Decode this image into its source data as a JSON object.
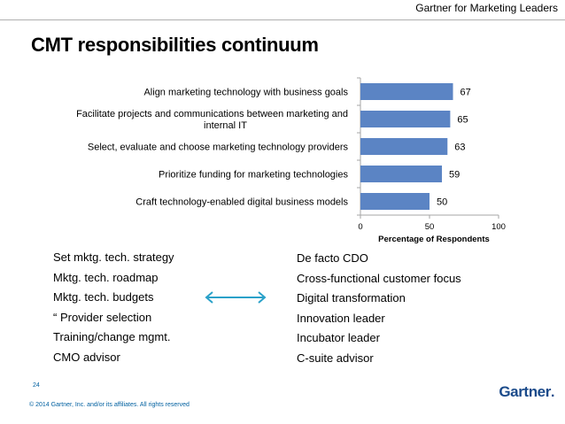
{
  "header": {
    "brand": "Gartner for Marketing Leaders"
  },
  "page": {
    "title": "CMT responsibilities continuum",
    "number": "24"
  },
  "chart_data": {
    "type": "bar",
    "orientation": "horizontal",
    "categories": [
      [
        "Align marketing technology with business goals"
      ],
      [
        "Facilitate projects and communications between marketing and",
        "internal IT"
      ],
      [
        "Select, evaluate and choose marketing technology providers"
      ],
      [
        "Prioritize funding for marketing technologies"
      ],
      [
        "Craft technology-enabled digital business models"
      ]
    ],
    "values": [
      67,
      65,
      63,
      59,
      50
    ],
    "xlabel": "Percentage of Respondents",
    "xlim": [
      0,
      100
    ],
    "xticks": [
      0,
      50,
      100
    ],
    "bar_color": "#5b84c4",
    "show_data_labels": true
  },
  "left_list": [
    "Set mktg. tech. strategy",
    "Mktg. tech. roadmap",
    "Mktg. tech. budgets",
    "“ Provider selection",
    "Training/change mgmt.",
    "CMO advisor"
  ],
  "right_list": [
    "De facto CDO",
    "Cross-functional customer focus",
    "Digital transformation",
    "Innovation leader",
    "Incubator leader",
    "C-suite advisor"
  ],
  "arrow_color": "#2aa1c9",
  "footer": {
    "copyright": "© 2014 Gartner, Inc. and/or its affiliates. All rights reserved",
    "logo": "Gartner",
    "logo_dot": "."
  }
}
